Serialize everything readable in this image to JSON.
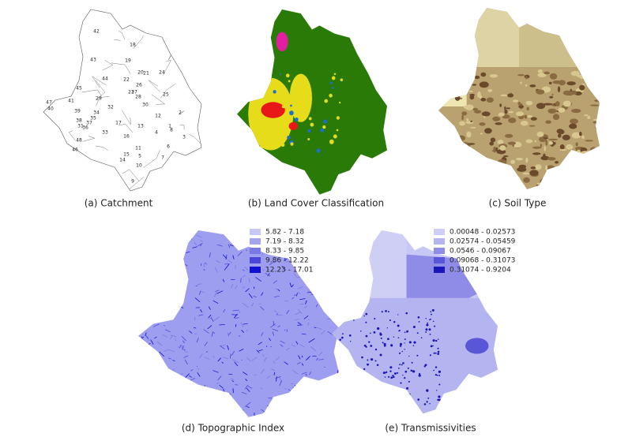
{
  "panels": [
    {
      "caption": "(a) Catchment",
      "labels": [
        "42",
        "18",
        "43",
        "19",
        "20",
        "21",
        "24",
        "45",
        "44",
        "22",
        "26",
        "28",
        "23",
        "27",
        "25",
        "41",
        "47",
        "40",
        "39",
        "38",
        "29",
        "32",
        "34",
        "30",
        "12",
        "35",
        "37",
        "36",
        "17",
        "13",
        "33",
        "16",
        "2",
        "4",
        "46",
        "48",
        "15",
        "11",
        "14",
        "5",
        "7",
        "3",
        "8",
        "10",
        "9",
        "6",
        "1",
        "31"
      ]
    },
    {
      "caption": "(b) Land Cover Classification"
    },
    {
      "caption": "(c) Soil Type"
    },
    {
      "caption": "(d) Topographic Index",
      "legend": [
        {
          "label": "5.82 - 7.18",
          "color": "#c8c8f4"
        },
        {
          "label": "7.19 - 8.32",
          "color": "#a4a4ec"
        },
        {
          "label": "8.33 - 9.85",
          "color": "#7a78e2"
        },
        {
          "label": "9.86 - 12.22",
          "color": "#4a46d8"
        },
        {
          "label": "12.23 - 17.01",
          "color": "#1010d0"
        }
      ]
    },
    {
      "caption": "(e) Transmissivities",
      "legend": [
        {
          "label": "0.00048 - 0.02573",
          "color": "#cfcff6"
        },
        {
          "label": "0.02574 - 0.05459",
          "color": "#b4b4f0"
        },
        {
          "label": "0.0546 - 0.09067",
          "color": "#8e8ce6"
        },
        {
          "label": "0.09068 - 0.31073",
          "color": "#5a56d8"
        },
        {
          "label": "0.31074 - 0.9204",
          "color": "#1a16b8"
        }
      ]
    }
  ]
}
